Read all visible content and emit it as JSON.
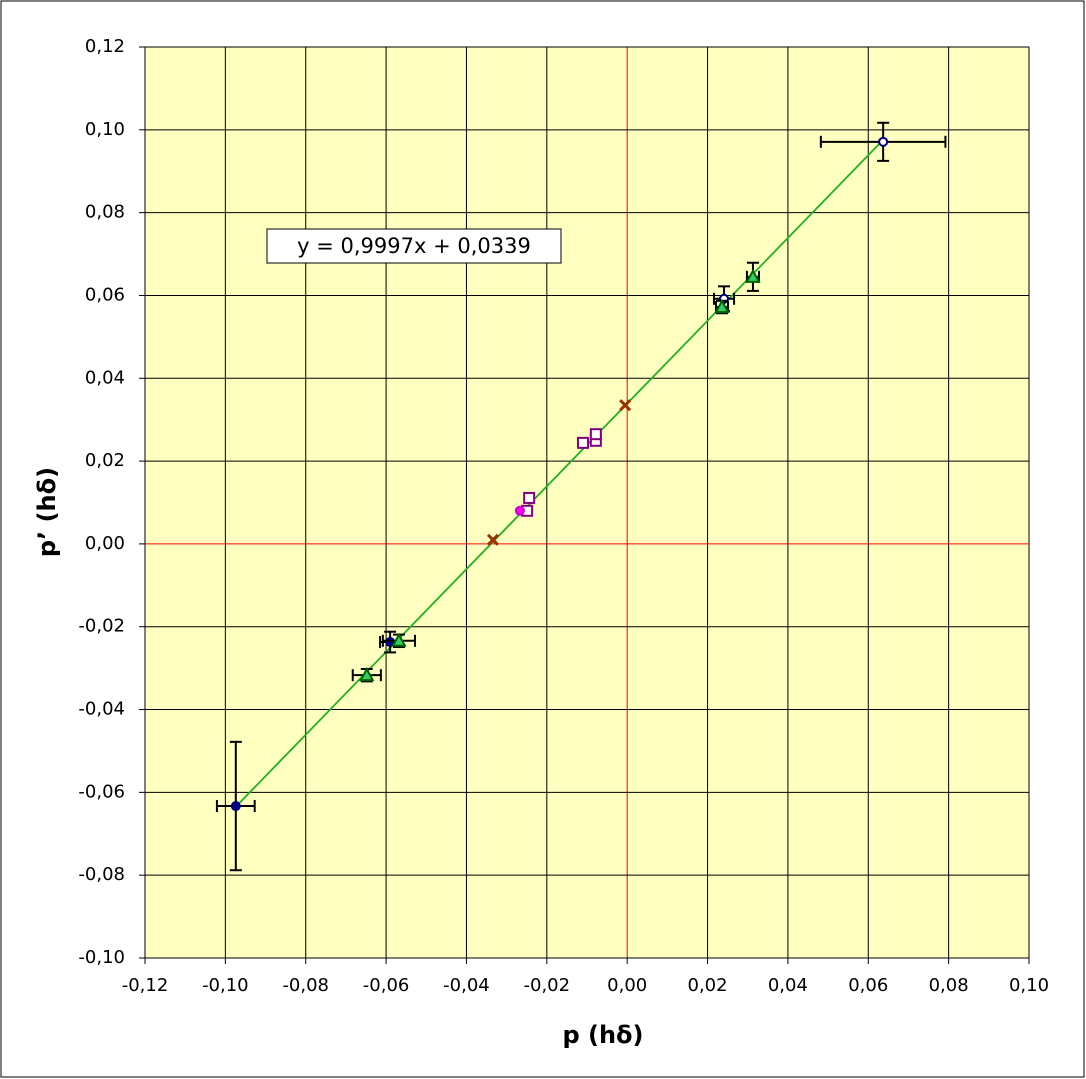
{
  "chart_data": {
    "type": "scatter",
    "x_label": "p  (hδ)",
    "y_label": "p’  (hδ)",
    "xlim": [
      -0.12,
      0.1
    ],
    "ylim": [
      -0.1,
      0.12
    ],
    "xticks": [
      {
        "value": -0.12,
        "label": "-0,12"
      },
      {
        "value": -0.1,
        "label": "-0,10"
      },
      {
        "value": -0.08,
        "label": "-0,08"
      },
      {
        "value": -0.06,
        "label": "-0,06"
      },
      {
        "value": -0.04,
        "label": "-0,04"
      },
      {
        "value": -0.02,
        "label": "-0,02"
      },
      {
        "value": 0,
        "label": "0,00"
      },
      {
        "value": 0.02,
        "label": "0,02"
      },
      {
        "value": 0.04,
        "label": "0,04"
      },
      {
        "value": 0.06,
        "label": "0,06"
      },
      {
        "value": 0.08,
        "label": "0,08"
      },
      {
        "value": 0.1,
        "label": "0,10"
      }
    ],
    "yticks": [
      {
        "value": -0.1,
        "label": "-0,10"
      },
      {
        "value": -0.08,
        "label": "-0,08"
      },
      {
        "value": -0.06,
        "label": "-0,06"
      },
      {
        "value": -0.04,
        "label": "-0,04"
      },
      {
        "value": -0.02,
        "label": "-0,02"
      },
      {
        "value": 0,
        "label": "0,00"
      },
      {
        "value": 0.02,
        "label": "0,02"
      },
      {
        "value": 0.04,
        "label": "0,04"
      },
      {
        "value": 0.06,
        "label": "0,06"
      },
      {
        "value": 0.08,
        "label": "0,08"
      },
      {
        "value": 0.1,
        "label": "0,10"
      },
      {
        "value": 0.12,
        "label": "0,12"
      }
    ],
    "grid": true,
    "plot_background": "#ffffc0",
    "zero_line_color": "#ff0000",
    "trendline": {
      "label": "y = 0,9997x + 0,0339",
      "slope": 0.9997,
      "intercept": 0.0339,
      "color": "#22b022"
    },
    "series": [
      {
        "color": "#000080",
        "marker": "circle",
        "marker_fill": "#000080",
        "x": [
          -0.0974,
          -0.059
        ],
        "values": [
          -0.0633,
          -0.0237
        ],
        "xerr": [
          0.0047,
          0.0025
        ],
        "yerr": [
          0.0155,
          0.0025
        ]
      },
      {
        "color": "#000080",
        "marker": "circle",
        "marker_fill": "#ffffff",
        "x": [
          0.0637,
          0.0241
        ],
        "values": [
          0.0971,
          0.0592
        ],
        "xerr": [
          0.0155,
          0.0025
        ],
        "yerr": [
          0.0046,
          0.003
        ]
      },
      {
        "color": "#006600",
        "marker": "triangle",
        "marker_fill": "#33cc66",
        "x": [
          -0.0568,
          -0.0648,
          0.0236,
          0.0313
        ],
        "values": [
          -0.0234,
          -0.0317,
          0.0572,
          0.0645
        ],
        "xerr": [
          0.004,
          0.0035,
          0.0015,
          0.0015
        ],
        "yerr": [
          0.0015,
          0.0015,
          0.0015,
          0.0034
        ]
      },
      {
        "color": "#800080",
        "marker": "square",
        "marker_fill": "#ffffff",
        "x": [
          -0.0249,
          -0.0244,
          -0.011,
          -0.0078,
          -0.0078
        ],
        "values": [
          0.008,
          0.0111,
          0.0244,
          0.0249,
          0.0265
        ]
      },
      {
        "color": "#993300",
        "marker": "cross",
        "marker_fill": "#993300",
        "x": [
          -0.0334,
          -0.0005
        ],
        "values": [
          0.001,
          0.0335
        ]
      },
      {
        "color": "#cc00cc",
        "marker": "circle",
        "marker_fill": "#ff00ff",
        "x": [
          -0.0267
        ],
        "values": [
          0.008
        ]
      }
    ]
  }
}
